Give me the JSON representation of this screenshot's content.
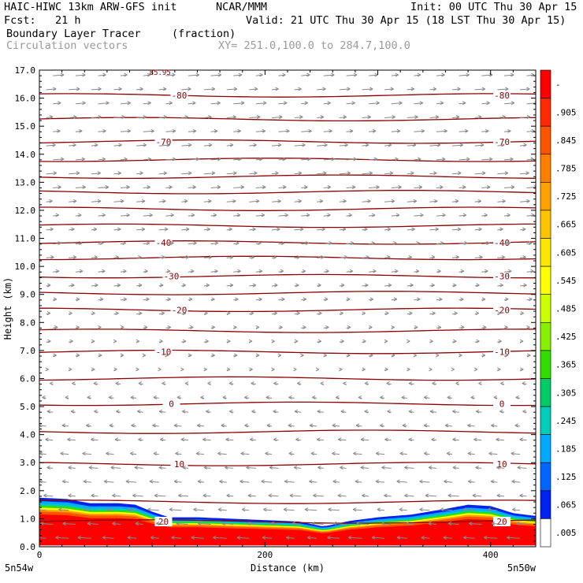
{
  "header": {
    "title_left": "HAIC-HIWC 13km ARW-GFS init",
    "org": "NCAR/MMM",
    "init": "Init: 00 UTC Thu 30 Apr 15",
    "fcst": "Fcst:   21 h",
    "valid": "Valid: 21 UTC Thu 30 Apr 15 (18 LST Thu 30 Apr 15)",
    "field": "Boundary Layer Tracer",
    "units": "(fraction)",
    "vectors": "Circulation vectors",
    "xy": "XY= 251.0,100.0 to 284.7,100.0"
  },
  "chart_data": {
    "type": "heatmap",
    "xlabel": "Distance (km)",
    "ylabel": "Height (km)",
    "xlim": [
      0,
      440
    ],
    "ylim": [
      0.0,
      17.0
    ],
    "x_ticks": [
      0,
      200,
      400
    ],
    "y_ticks": [
      "0.0",
      "1.0",
      "2.0",
      "3.0",
      "4.0",
      "5.0",
      "6.0",
      "7.0",
      "8.0",
      "9.0",
      "10.0",
      "11.0",
      "12.0",
      "13.0",
      "14.0",
      "15.0",
      "16.0",
      "17.0"
    ],
    "x_endpoints": {
      "left": "5n54w",
      "right": "5n50w"
    },
    "truncated_label": "85.95",
    "terrain_top_km": 0.05,
    "tracer_top_km": [
      {
        "x": 0,
        "h": 1.75
      },
      {
        "x": 25,
        "h": 1.7
      },
      {
        "x": 45,
        "h": 1.55
      },
      {
        "x": 70,
        "h": 1.55
      },
      {
        "x": 85,
        "h": 1.5
      },
      {
        "x": 100,
        "h": 1.25
      },
      {
        "x": 115,
        "h": 1.05
      },
      {
        "x": 140,
        "h": 1.05
      },
      {
        "x": 170,
        "h": 1.0
      },
      {
        "x": 200,
        "h": 0.95
      },
      {
        "x": 230,
        "h": 0.9
      },
      {
        "x": 252,
        "h": 0.72
      },
      {
        "x": 275,
        "h": 0.92
      },
      {
        "x": 300,
        "h": 1.05
      },
      {
        "x": 330,
        "h": 1.15
      },
      {
        "x": 360,
        "h": 1.35
      },
      {
        "x": 380,
        "h": 1.5
      },
      {
        "x": 400,
        "h": 1.45
      },
      {
        "x": 420,
        "h": 1.2
      },
      {
        "x": 440,
        "h": 1.1
      }
    ],
    "temperature_contours": [
      {
        "value": 20,
        "height": 0.9,
        "labels": [
          "20",
          "20"
        ]
      },
      {
        "value": 15,
        "height": 1.6,
        "labels": []
      },
      {
        "value": 10,
        "height": 2.95,
        "labels": [
          "10",
          "10"
        ]
      },
      {
        "value": 5,
        "height": 4.1,
        "labels": []
      },
      {
        "value": 0,
        "height": 5.1,
        "labels": [
          "0",
          "0"
        ]
      },
      {
        "value": -5,
        "height": 6.0,
        "labels": []
      },
      {
        "value": -10,
        "height": 6.95,
        "labels": [
          "-10",
          "-10"
        ]
      },
      {
        "value": -15,
        "height": 7.7,
        "labels": []
      },
      {
        "value": -20,
        "height": 8.45,
        "labels": [
          "-20",
          "-20"
        ]
      },
      {
        "value": -25,
        "height": 9.05,
        "labels": []
      },
      {
        "value": -30,
        "height": 9.65,
        "labels": [
          "-30",
          "-30"
        ]
      },
      {
        "value": -35,
        "height": 10.3,
        "labels": []
      },
      {
        "value": -40,
        "height": 10.85,
        "labels": [
          "-40",
          "-40"
        ]
      },
      {
        "value": -45,
        "height": 11.45,
        "labels": []
      },
      {
        "value": -50,
        "height": 12.05,
        "labels": []
      },
      {
        "value": -55,
        "height": 12.65,
        "labels": []
      },
      {
        "value": -60,
        "height": 13.2,
        "labels": []
      },
      {
        "value": -65,
        "height": 13.8,
        "labels": []
      },
      {
        "value": -70,
        "height": 14.45,
        "labels": [
          "-70",
          "-70"
        ]
      },
      {
        "value": -75,
        "height": 15.25,
        "labels": []
      },
      {
        "value": -80,
        "height": 16.1,
        "labels": [
          "-80",
          "-80"
        ]
      }
    ],
    "colorbar": {
      "labels": [
        "-",
        ".905",
        ".845",
        ".785",
        ".725",
        ".665",
        ".605",
        ".545",
        ".485",
        ".425",
        ".365",
        ".305",
        ".245",
        ".185",
        ".125",
        ".065",
        ".005"
      ],
      "colors": [
        "#ff0000",
        "#ff2a00",
        "#ff5500",
        "#ff7f00",
        "#ffa200",
        "#ffc400",
        "#ffe600",
        "#ffff00",
        "#ccff00",
        "#88f000",
        "#33dd00",
        "#00cc66",
        "#00ccbb",
        "#00aaff",
        "#0066ff",
        "#0022ee",
        "#ffffff"
      ]
    },
    "vector_color": "#888888",
    "contour_color": "#8b0000",
    "grid_color": "#000000"
  }
}
